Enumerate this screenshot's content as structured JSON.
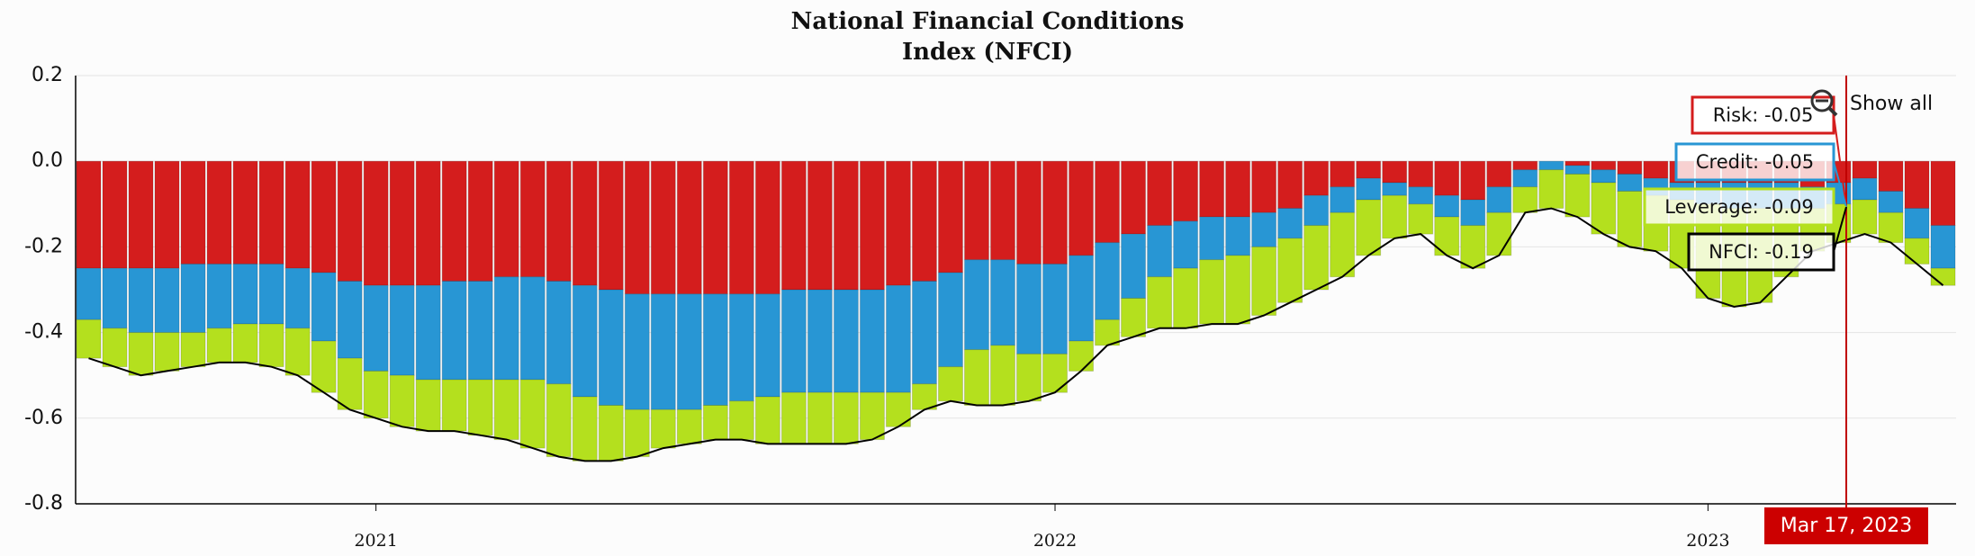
{
  "chart_data": {
    "type": "stacked-bar-line",
    "title": [
      "National Financial Conditions",
      "Index (NFCI)"
    ],
    "categories": [
      null,
      null,
      null,
      null,
      null,
      null,
      null,
      null,
      null,
      null,
      null,
      "2021",
      null,
      null,
      null,
      null,
      null,
      null,
      null,
      null,
      null,
      null,
      null,
      null,
      null,
      null,
      null,
      null,
      null,
      null,
      null,
      null,
      null,
      null,
      null,
      null,
      null,
      "2022",
      null,
      null,
      null,
      null,
      null,
      null,
      null,
      null,
      null,
      null,
      null,
      null,
      null,
      null,
      null,
      null,
      null,
      null,
      null,
      null,
      null,
      null,
      null,
      null,
      "2023",
      null,
      null,
      null,
      null,
      null,
      null,
      null,
      null,
      null
    ],
    "ylim": [
      -0.8,
      0.2
    ],
    "yticks": [
      0.2,
      {
        "value": 0,
        "label": "0.0"
      },
      -0.2,
      -0.4,
      -0.6,
      -0.8
    ],
    "grid": true,
    "series": [
      {
        "color": "#d41d1d",
        "kind": "bar",
        "values": [
          -0.25,
          -0.25,
          -0.25,
          -0.25,
          -0.24,
          -0.24,
          -0.24,
          -0.24,
          -0.25,
          -0.26,
          -0.28,
          -0.29,
          -0.29,
          -0.29,
          -0.28,
          -0.28,
          -0.27,
          -0.27,
          -0.28,
          -0.29,
          -0.3,
          -0.31,
          -0.31,
          -0.31,
          -0.31,
          -0.31,
          -0.31,
          -0.3,
          -0.3,
          -0.3,
          -0.3,
          -0.29,
          -0.28,
          -0.26,
          -0.23,
          -0.23,
          -0.24,
          -0.24,
          -0.22,
          -0.19,
          -0.17,
          -0.15,
          -0.14,
          -0.13,
          -0.13,
          -0.12,
          -0.11,
          -0.08,
          -0.06,
          -0.04,
          -0.05,
          -0.06,
          -0.08,
          -0.09,
          -0.06,
          -0.02,
          0,
          -0.01,
          -0.02,
          -0.03,
          -0.04,
          -0.05,
          -0.05,
          -0.05,
          -0.05,
          -0.05,
          -0.06,
          -0.05,
          -0.04,
          -0.07,
          -0.11,
          -0.15
        ]
      },
      {
        "color": "#2896d4",
        "kind": "bar",
        "values": [
          -0.12,
          -0.14,
          -0.15,
          -0.15,
          -0.16,
          -0.15,
          -0.14,
          -0.14,
          -0.14,
          -0.16,
          -0.18,
          -0.2,
          -0.21,
          -0.22,
          -0.23,
          -0.23,
          -0.24,
          -0.24,
          -0.24,
          -0.26,
          -0.27,
          -0.27,
          -0.27,
          -0.27,
          -0.26,
          -0.25,
          -0.24,
          -0.24,
          -0.24,
          -0.24,
          -0.24,
          -0.25,
          -0.24,
          -0.22,
          -0.21,
          -0.2,
          -0.21,
          -0.21,
          -0.2,
          -0.18,
          -0.15,
          -0.12,
          -0.11,
          -0.1,
          -0.09,
          -0.08,
          -0.07,
          -0.07,
          -0.06,
          -0.05,
          -0.03,
          -0.04,
          -0.05,
          -0.06,
          -0.06,
          -0.04,
          -0.02,
          -0.02,
          -0.03,
          -0.04,
          -0.04,
          -0.04,
          -0.05,
          -0.06,
          -0.06,
          -0.06,
          -0.05,
          -0.05,
          -0.05,
          -0.05,
          -0.07,
          -0.1
        ]
      },
      {
        "color": "#b4e01e",
        "kind": "bar",
        "values": [
          -0.09,
          -0.09,
          -0.1,
          -0.09,
          -0.08,
          -0.08,
          -0.09,
          -0.1,
          -0.11,
          -0.12,
          -0.12,
          -0.11,
          -0.12,
          -0.12,
          -0.12,
          -0.13,
          -0.14,
          -0.16,
          -0.17,
          -0.15,
          -0.13,
          -0.11,
          -0.09,
          -0.08,
          -0.08,
          -0.09,
          -0.11,
          -0.12,
          -0.12,
          -0.12,
          -0.11,
          -0.08,
          -0.06,
          -0.08,
          -0.13,
          -0.14,
          -0.11,
          -0.09,
          -0.07,
          -0.06,
          -0.09,
          -0.12,
          -0.14,
          -0.15,
          -0.16,
          -0.16,
          -0.15,
          -0.15,
          -0.15,
          -0.13,
          -0.1,
          -0.07,
          -0.09,
          -0.1,
          -0.1,
          -0.06,
          -0.09,
          -0.1,
          -0.12,
          -0.13,
          -0.13,
          -0.16,
          -0.22,
          -0.23,
          -0.22,
          -0.16,
          -0.1,
          -0.09,
          -0.08,
          -0.07,
          -0.06,
          -0.04
        ]
      },
      {
        "color": "#000000",
        "kind": "line",
        "values": [
          -0.46,
          -0.48,
          -0.5,
          -0.49,
          -0.48,
          -0.47,
          -0.47,
          -0.48,
          -0.5,
          -0.54,
          -0.58,
          -0.6,
          -0.62,
          -0.63,
          -0.63,
          -0.64,
          -0.65,
          -0.67,
          -0.69,
          -0.7,
          -0.7,
          -0.69,
          -0.67,
          -0.66,
          -0.65,
          -0.65,
          -0.66,
          -0.66,
          -0.66,
          -0.66,
          -0.65,
          -0.62,
          -0.58,
          -0.56,
          -0.57,
          -0.57,
          -0.56,
          -0.54,
          -0.49,
          -0.43,
          -0.41,
          -0.39,
          -0.39,
          -0.38,
          -0.38,
          -0.36,
          -0.33,
          -0.3,
          -0.27,
          -0.22,
          -0.18,
          -0.17,
          -0.22,
          -0.25,
          -0.22,
          -0.12,
          -0.11,
          -0.13,
          -0.17,
          -0.2,
          -0.21,
          -0.25,
          -0.32,
          -0.34,
          -0.33,
          -0.27,
          -0.21,
          -0.19,
          -0.17,
          -0.19,
          -0.24,
          -0.29
        ]
      }
    ],
    "tooltip": {
      "date": "Mar 17, 2023",
      "items": [
        "Risk: -0.05",
        "Credit: -0.05",
        "Leverage: -0.09",
        "NFCI: -0.19"
      ]
    },
    "button": "Show all"
  }
}
